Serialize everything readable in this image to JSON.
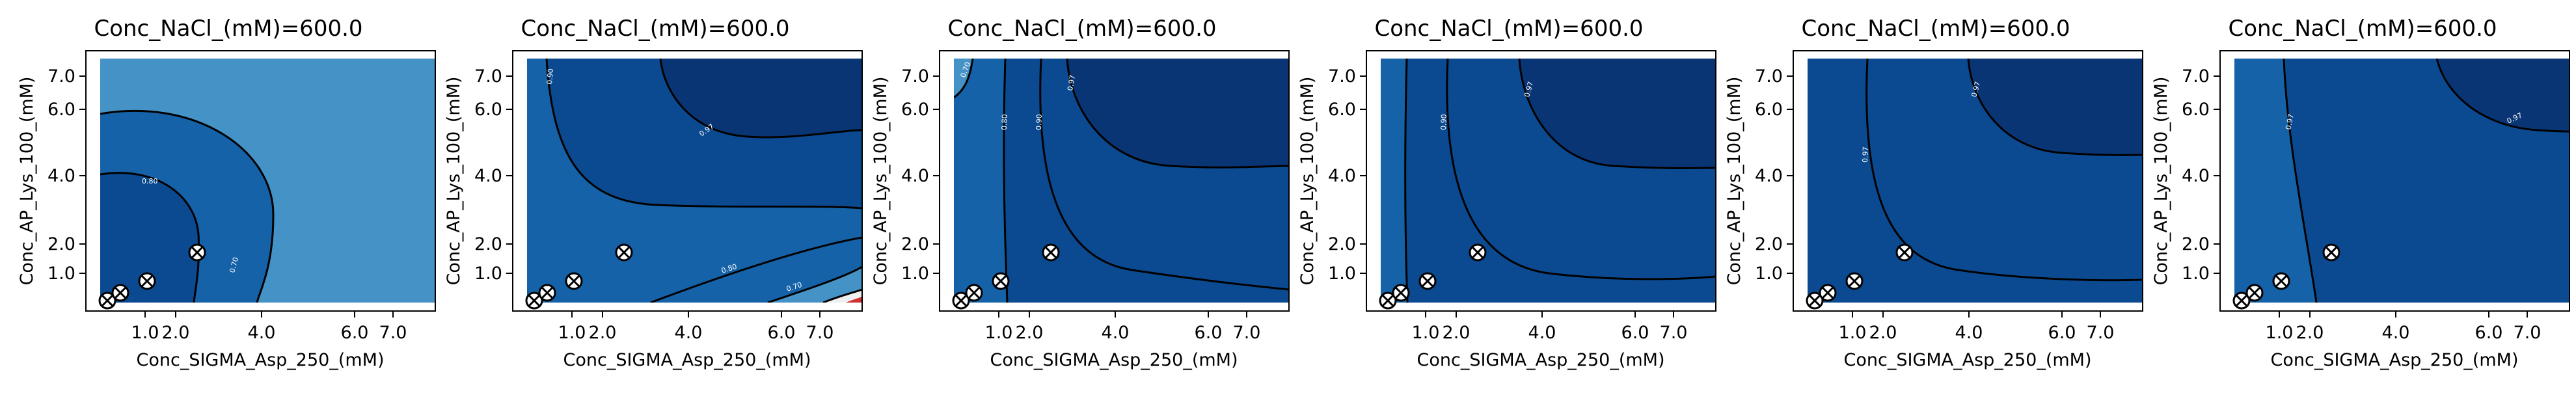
{
  "figure": {
    "background": "#ffffff"
  },
  "chart_data": [
    {
      "type": "heatmap",
      "title": "Conc_NaCl_(mM)=600.0",
      "xlabel": "Conc_SIGMA_Asp_250_(mM)",
      "ylabel": "Conc_AP_Lys_100_(mM)",
      "x_ticks": [
        "1.0",
        "2.0",
        "4.0",
        "6.0",
        "7.0"
      ],
      "y_ticks": [
        "1.0",
        "2.0",
        "4.0",
        "6.0",
        "7.0"
      ],
      "xlim": [
        0.2,
        7.7
      ],
      "ylim": [
        0.2,
        7.7
      ],
      "contour_labels": [
        "0.80",
        "0.70"
      ],
      "points": [
        [
          0.35,
          0.25
        ],
        [
          0.6,
          0.45
        ],
        [
          1.1,
          0.8
        ],
        [
          2.3,
          1.6
        ]
      ]
    },
    {
      "type": "heatmap",
      "title": "Conc_NaCl_(mM)=600.0",
      "xlabel": "Conc_SIGMA_Asp_250_(mM)",
      "ylabel": "Conc_AP_Lys_100_(mM)",
      "x_ticks": [
        "1.0",
        "2.0",
        "4.0",
        "6.0",
        "7.0"
      ],
      "y_ticks": [
        "1.0",
        "2.0",
        "4.0",
        "6.0",
        "7.0"
      ],
      "xlim": [
        0.2,
        7.7
      ],
      "ylim": [
        0.2,
        7.7
      ],
      "contour_labels": [
        "0.97",
        "0.90",
        "0.80",
        "0.70"
      ],
      "points": [
        [
          0.35,
          0.25
        ],
        [
          0.6,
          0.45
        ],
        [
          1.1,
          0.8
        ],
        [
          2.3,
          1.6
        ]
      ]
    },
    {
      "type": "heatmap",
      "title": "Conc_NaCl_(mM)=600.0",
      "xlabel": "Conc_SIGMA_Asp_250_(mM)",
      "ylabel": "Conc_AP_Lys_100_(mM)",
      "x_ticks": [
        "1.0",
        "2.0",
        "4.0",
        "6.0",
        "7.0"
      ],
      "y_ticks": [
        "1.0",
        "2.0",
        "4.0",
        "6.0",
        "7.0"
      ],
      "xlim": [
        0.2,
        7.7
      ],
      "ylim": [
        0.2,
        7.7
      ],
      "contour_labels": [
        "0.70",
        "0.80",
        "0.90",
        "0.97"
      ],
      "points": [
        [
          0.35,
          0.25
        ],
        [
          0.6,
          0.45
        ],
        [
          1.1,
          0.8
        ],
        [
          2.3,
          1.6
        ]
      ]
    },
    {
      "type": "heatmap",
      "title": "Conc_NaCl_(mM)=600.0",
      "xlabel": "Conc_SIGMA_Asp_250_(mM)",
      "ylabel": "Conc_AP_Lys_100_(mM)",
      "x_ticks": [
        "1.0",
        "2.0",
        "4.0",
        "6.0",
        "7.0"
      ],
      "y_ticks": [
        "1.0",
        "2.0",
        "4.0",
        "6.0",
        "7.0"
      ],
      "xlim": [
        0.2,
        7.7
      ],
      "ylim": [
        0.2,
        7.7
      ],
      "contour_labels": [
        "0.90",
        "0.97"
      ],
      "points": [
        [
          0.35,
          0.25
        ],
        [
          0.6,
          0.45
        ],
        [
          1.1,
          0.8
        ],
        [
          2.3,
          1.6
        ]
      ]
    },
    {
      "type": "heatmap",
      "title": "Conc_NaCl_(mM)=600.0",
      "xlabel": "Conc_SIGMA_Asp_250_(mM)",
      "ylabel": "Conc_AP_Lys_100_(mM)",
      "x_ticks": [
        "1.0",
        "2.0",
        "4.0",
        "6.0",
        "7.0"
      ],
      "y_ticks": [
        "1.0",
        "2.0",
        "4.0",
        "6.0",
        "7.0"
      ],
      "xlim": [
        0.2,
        7.7
      ],
      "ylim": [
        0.2,
        7.7
      ],
      "contour_labels": [
        "0.97",
        "0.97"
      ],
      "points": [
        [
          0.35,
          0.25
        ],
        [
          0.6,
          0.45
        ],
        [
          1.1,
          0.8
        ],
        [
          2.3,
          1.6
        ]
      ]
    },
    {
      "type": "heatmap",
      "title": "Conc_NaCl_(mM)=600.0",
      "xlabel": "Conc_SIGMA_Asp_250_(mM)",
      "ylabel": "Conc_AP_Lys_100_(mM)",
      "x_ticks": [
        "1.0",
        "2.0",
        "4.0",
        "6.0",
        "7.0"
      ],
      "y_ticks": [
        "1.0",
        "2.0",
        "4.0",
        "6.0",
        "7.0"
      ],
      "xlim": [
        0.2,
        7.7
      ],
      "ylim": [
        0.2,
        7.7
      ],
      "contour_labels": [
        "0.97",
        "0.97"
      ],
      "points": [
        [
          0.35,
          0.25
        ],
        [
          0.6,
          0.45
        ],
        [
          1.1,
          0.8
        ],
        [
          2.3,
          1.6
        ]
      ]
    }
  ]
}
